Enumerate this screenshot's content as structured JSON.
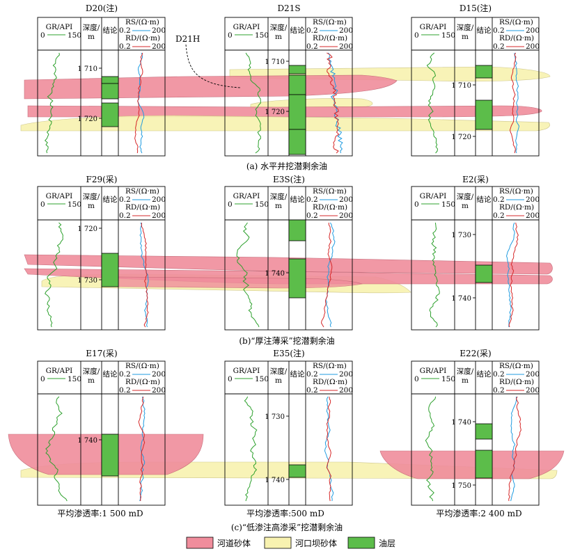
{
  "panels": [
    {
      "caption": "(a) 水平井挖潜剩余油",
      "wells": [
        {
          "name": "D20(注)",
          "depths": [
            "1 710",
            "1 720"
          ]
        },
        {
          "name": "D21S",
          "depths": [
            "1 710",
            "1 720"
          ]
        },
        {
          "name": "D15(注)",
          "depths": [
            "1 710",
            "1 720"
          ]
        }
      ],
      "annotation": "D21H"
    },
    {
      "caption": "(b)“厚注薄采”挖潜剩余油",
      "wells": [
        {
          "name": "F29(采)",
          "depths": [
            "1 720",
            "1 730"
          ]
        },
        {
          "name": "E3S(注)",
          "depths": [
            "1 740"
          ]
        },
        {
          "name": "E2(采)",
          "depths": [
            "1 730",
            "1 740"
          ]
        }
      ]
    },
    {
      "caption": "(c)“低渗注高渗采”挖潜剩余油",
      "wells": [
        {
          "name": "E17(采)",
          "depths": [
            "1 740"
          ],
          "permeability": "平均渗透率:1 500 mD"
        },
        {
          "name": "E35(注)",
          "depths": [
            "1 730",
            "1 740"
          ],
          "permeability": "平均渗透率:500 mD"
        },
        {
          "name": "E22(采)",
          "depths": [
            "1 740",
            "1 750"
          ],
          "permeability": "平均渗透率:2 400 mD"
        }
      ]
    }
  ],
  "track_headers": {
    "gr_label": "GR/API",
    "gr_min": "0",
    "gr_max": "150",
    "depth_label_1": "深度/",
    "depth_label_2": "m",
    "conclusion": "结论",
    "rs_label": "R",
    "rs_sub": "S",
    "rs_unit": "/(Ω·m)",
    "rd_label": "R",
    "rd_sub": "D",
    "rd_unit": "/(Ω·m)",
    "res_min": "0.2",
    "res_max": "200"
  },
  "legend": [
    {
      "label": "河道砂体",
      "color": "#f08d9c"
    },
    {
      "label": "河口坝砂体",
      "color": "#f8f2b0"
    },
    {
      "label": "油层",
      "color": "#5cbd4a"
    }
  ],
  "colors": {
    "gr_curve": "#2ca02c",
    "rs_curve": "#1f9be0",
    "rd_curve": "#d62728",
    "channel": "#f08d9c",
    "bar": "#f8f2b0",
    "oil": "#5cbd4a"
  }
}
